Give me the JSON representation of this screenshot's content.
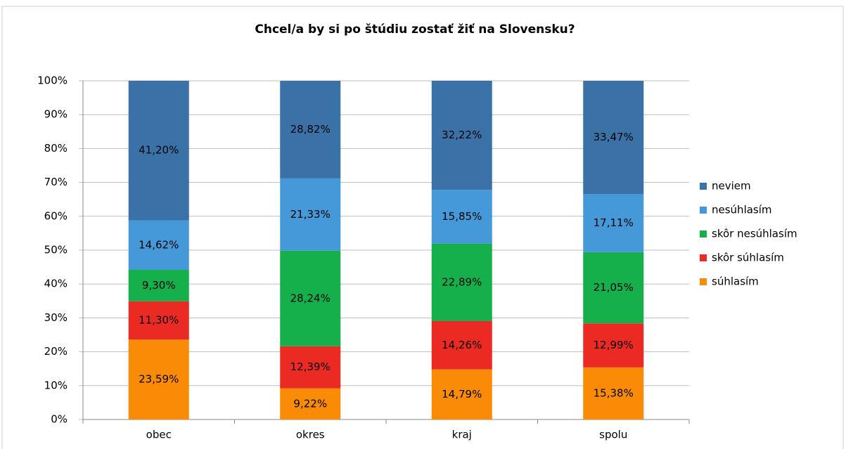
{
  "chart_data": {
    "type": "stacked_bar",
    "title": "Chcel/a by si po štúdiu zostať žiť na Slovensku?",
    "categories": [
      "obec",
      "okres",
      "kraj",
      "spolu"
    ],
    "series": [
      {
        "name": "súhlasím",
        "color": "#f98b06",
        "values": [
          23.59,
          9.22,
          14.79,
          15.38
        ],
        "value_labels": [
          "23,59%",
          "9,22%",
          "14,79%",
          "15,38%"
        ]
      },
      {
        "name": "skôr súhlasím",
        "color": "#ec2a24",
        "values": [
          11.3,
          12.39,
          14.26,
          12.99
        ],
        "value_labels": [
          "11,30%",
          "12,39%",
          "14,26%",
          "12,99%"
        ]
      },
      {
        "name": "skôr nesúhlasím",
        "color": "#15b04b",
        "values": [
          9.3,
          28.24,
          22.89,
          21.05
        ],
        "value_labels": [
          "9,30%",
          "28,24%",
          "22,89%",
          "21,05%"
        ]
      },
      {
        "name": "nesúhlasím",
        "color": "#4599d8",
        "values": [
          14.62,
          21.33,
          15.85,
          17.11
        ],
        "value_labels": [
          "14,62%",
          "21,33%",
          "15,85%",
          "17,11%"
        ]
      },
      {
        "name": "neviem",
        "color": "#3a72a8",
        "values": [
          41.2,
          28.82,
          32.22,
          33.47
        ],
        "value_labels": [
          "41,20%",
          "28,82%",
          "32,22%",
          "33,47%"
        ]
      }
    ],
    "ylim": [
      0,
      100
    ],
    "yticks": [
      {
        "value": 0,
        "label": "0%"
      },
      {
        "value": 10,
        "label": "10%"
      },
      {
        "value": 20,
        "label": "20%"
      },
      {
        "value": 30,
        "label": "30%"
      },
      {
        "value": 40,
        "label": "40%"
      },
      {
        "value": 50,
        "label": "50%"
      },
      {
        "value": 60,
        "label": "60%"
      },
      {
        "value": 70,
        "label": "70%"
      },
      {
        "value": 80,
        "label": "80%"
      },
      {
        "value": 90,
        "label": "90%"
      },
      {
        "value": 100,
        "label": "100%"
      }
    ],
    "grid": true,
    "legend": "right"
  }
}
